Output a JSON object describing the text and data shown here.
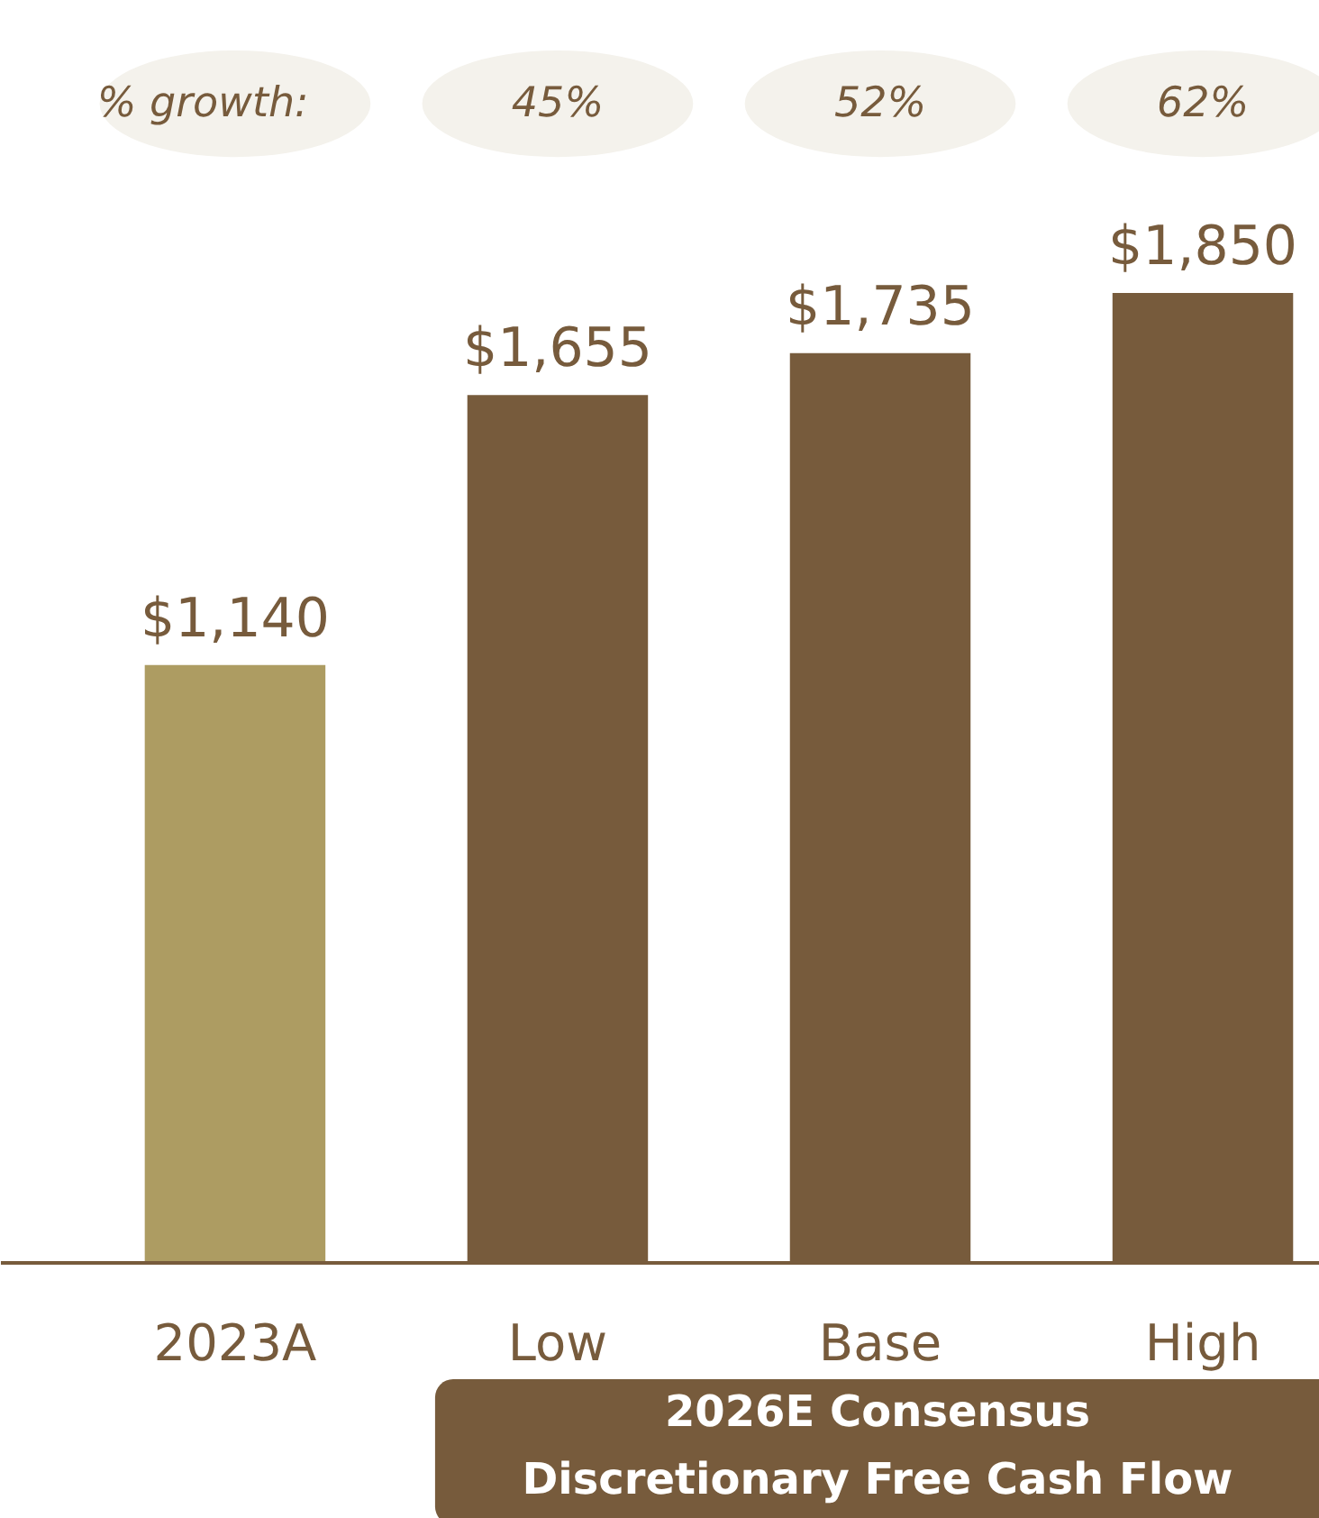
{
  "chart_data": {
    "type": "bar",
    "categories": [
      "2023A",
      "Low",
      "Base",
      "High"
    ],
    "values": [
      1140,
      1655,
      1735,
      1850
    ],
    "colors": [
      "#ad9c62",
      "#775b3c",
      "#775b3c",
      "#775b3c"
    ],
    "value_labels": [
      "$1,140",
      "$1,655",
      "$1,735",
      "$1,850"
    ],
    "annotations": [
      "% growth:",
      "45%",
      "52%",
      "62%",
      "2026E Consensus\nDiscretionary Free Cash Flow"
    ]
  }
}
